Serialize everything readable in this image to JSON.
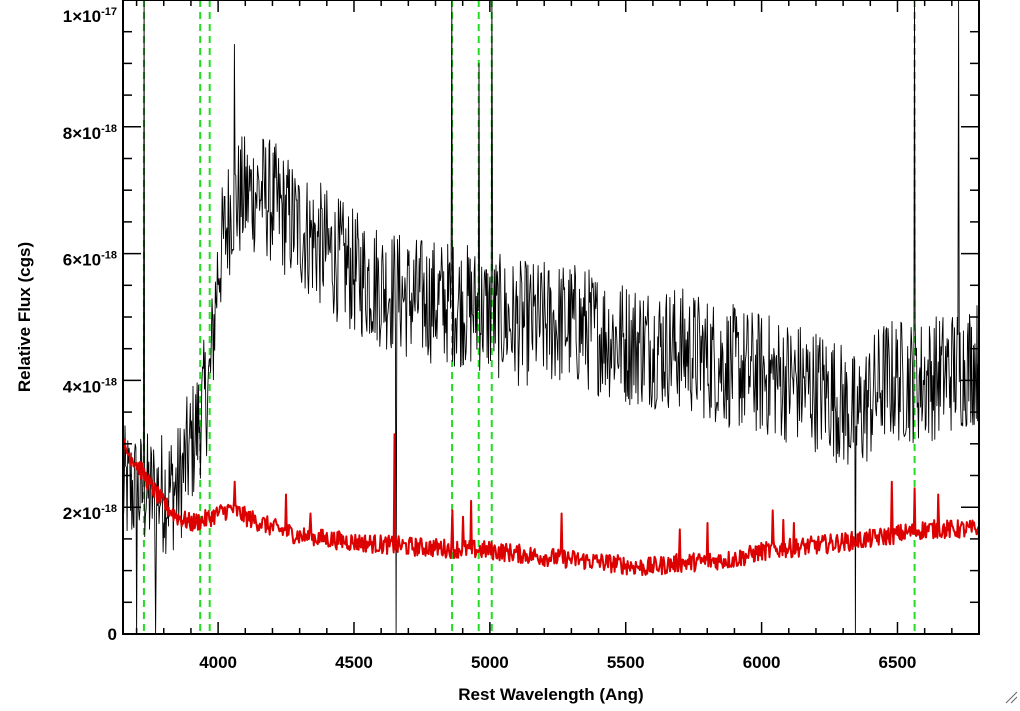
{
  "chart_data": {
    "type": "line",
    "xlabel": "Rest Wavelength (Ang)",
    "ylabel": "Relative Flux (cgs)",
    "xlim": [
      3650,
      6800
    ],
    "ylim": [
      0,
      1e-17
    ],
    "x_ticks": [
      {
        "value": 4000,
        "label": "4000"
      },
      {
        "value": 4500,
        "label": "4500"
      },
      {
        "value": 5000,
        "label": "5000"
      },
      {
        "value": 5500,
        "label": "5500"
      },
      {
        "value": 6000,
        "label": "6000"
      },
      {
        "value": 6500,
        "label": "6500"
      }
    ],
    "y_ticks": [
      {
        "value": 0,
        "mantissa": "0",
        "exponent": ""
      },
      {
        "value": 2e-18,
        "mantissa": "2×10",
        "exponent": "-18"
      },
      {
        "value": 4e-18,
        "mantissa": "4×10",
        "exponent": "-18"
      },
      {
        "value": 6e-18,
        "mantissa": "6×10",
        "exponent": "-18"
      },
      {
        "value": 8e-18,
        "mantissa": "8×10",
        "exponent": "-18"
      },
      {
        "value": 1e-17,
        "mantissa": "1×10",
        "exponent": "-17"
      }
    ],
    "line_markers": [
      3727,
      3934,
      3969,
      4861,
      4959,
      5007,
      6563
    ],
    "series": [
      {
        "color": "#000000",
        "noise_amplitude": 1e-18,
        "continuum": [
          [
            3650,
            2.3e-18
          ],
          [
            3750,
            2.2e-18
          ],
          [
            3850,
            2.3e-18
          ],
          [
            3920,
            3.2e-18
          ],
          [
            3970,
            4e-18
          ],
          [
            4000,
            5.8e-18
          ],
          [
            4050,
            6.8e-18
          ],
          [
            4150,
            7e-18
          ],
          [
            4300,
            6.4e-18
          ],
          [
            4500,
            5.7e-18
          ],
          [
            4700,
            5.3e-18
          ],
          [
            4900,
            5.2e-18
          ],
          [
            5100,
            4.9e-18
          ],
          [
            5300,
            4.9e-18
          ],
          [
            5500,
            4.6e-18
          ],
          [
            5700,
            4.5e-18
          ],
          [
            5900,
            4.2e-18
          ],
          [
            6100,
            4e-18
          ],
          [
            6250,
            3.8e-18
          ],
          [
            6350,
            3.4e-18
          ],
          [
            6450,
            4e-18
          ],
          [
            6600,
            4e-18
          ],
          [
            6800,
            4.3e-18
          ]
        ],
        "spikes": [
          [
            3727,
            1e-17
          ],
          [
            4061,
            9.3e-18
          ],
          [
            4861,
            1e-17
          ],
          [
            4959,
            9e-18
          ],
          [
            5007,
            1e-17
          ],
          [
            6563,
            1e-17
          ],
          [
            6725,
            1e-17
          ],
          [
            4655,
            0
          ],
          [
            6345,
            0
          ],
          [
            3700,
            0
          ],
          [
            3770,
            0
          ]
        ]
      },
      {
        "color": "#dd0000",
        "noise_amplitude": 1.5e-19,
        "continuum": [
          [
            3650,
            2.95e-18
          ],
          [
            3700,
            2.7e-18
          ],
          [
            3750,
            2.35e-18
          ],
          [
            3800,
            2.05e-18
          ],
          [
            3850,
            1.85e-18
          ],
          [
            3900,
            1.75e-18
          ],
          [
            3950,
            1.8e-18
          ],
          [
            4000,
            1.9e-18
          ],
          [
            4050,
            1.98e-18
          ],
          [
            4100,
            1.85e-18
          ],
          [
            4200,
            1.68e-18
          ],
          [
            4300,
            1.55e-18
          ],
          [
            4500,
            1.45e-18
          ],
          [
            4700,
            1.38e-18
          ],
          [
            5000,
            1.32e-18
          ],
          [
            5200,
            1.22e-18
          ],
          [
            5400,
            1.14e-18
          ],
          [
            5570,
            1.05e-18
          ],
          [
            5700,
            1.12e-18
          ],
          [
            5900,
            1.18e-18
          ],
          [
            6000,
            1.3e-18
          ],
          [
            6200,
            1.4e-18
          ],
          [
            6400,
            1.5e-18
          ],
          [
            6600,
            1.65e-18
          ],
          [
            6800,
            1.65e-18
          ]
        ],
        "spikes": [
          [
            4060,
            2.4e-18
          ],
          [
            4250,
            2.2e-18
          ],
          [
            4340,
            1.9e-18
          ],
          [
            4650,
            3.15e-18
          ],
          [
            4861,
            1.95e-18
          ],
          [
            4900,
            1.85e-18
          ],
          [
            4930,
            2.1e-18
          ],
          [
            5265,
            1.9e-18
          ],
          [
            5700,
            1.65e-18
          ],
          [
            5800,
            1.75e-18
          ],
          [
            6040,
            1.95e-18
          ],
          [
            6080,
            1.8e-18
          ],
          [
            6120,
            1.75e-18
          ],
          [
            6480,
            2.4e-18
          ],
          [
            6563,
            2.3e-18
          ],
          [
            6650,
            2.2e-18
          ]
        ]
      }
    ]
  }
}
